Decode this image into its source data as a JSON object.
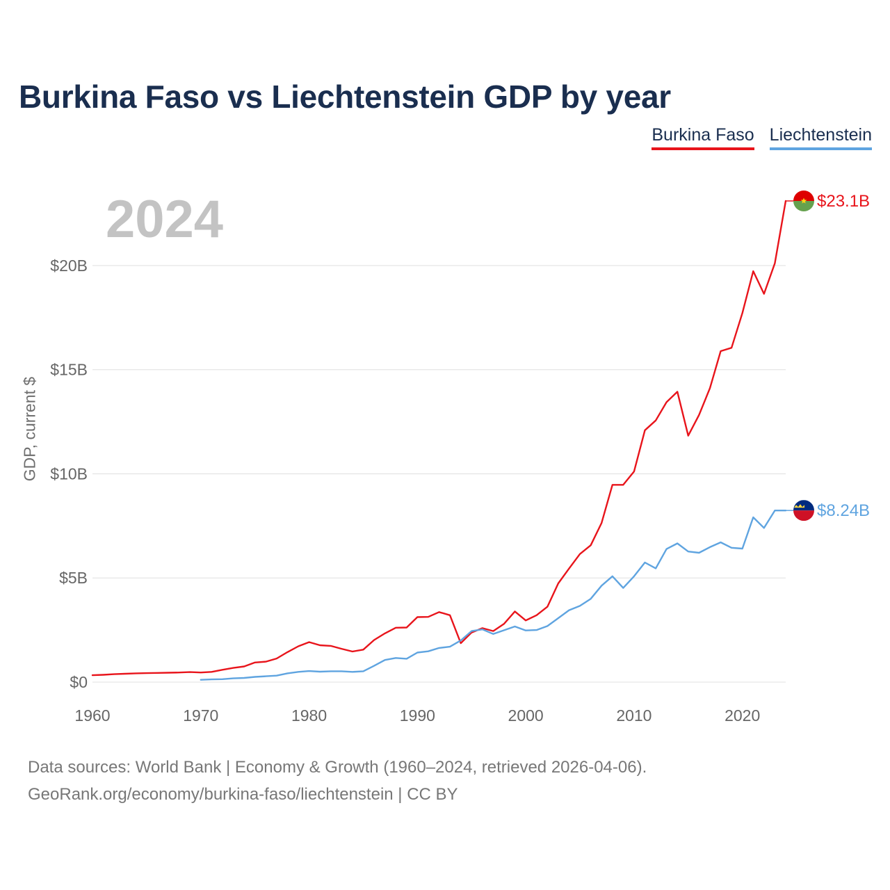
{
  "page": {
    "title": "Burkina Faso vs Liechtenstein GDP by year",
    "year_label": "2024",
    "source_line1": "Data sources: World Bank | Economy & Growth (1960–2024, retrieved 2026-04-06).",
    "source_line2": "GeoRank.org/economy/burkina-faso/liechtenstein | CC BY"
  },
  "legend": [
    {
      "name": "Burkina Faso",
      "color": "#e8141b"
    },
    {
      "name": "Liechtenstein",
      "color": "#5fa4e0"
    }
  ],
  "chart_data": {
    "type": "line",
    "title": "Burkina Faso vs Liechtenstein GDP by year",
    "xlabel": "",
    "ylabel": "GDP, current $",
    "xlim": [
      1960,
      2024
    ],
    "ylim": [
      0,
      23.1
    ],
    "x_ticks": [
      1960,
      1970,
      1980,
      1990,
      2000,
      2010,
      2020
    ],
    "x_tick_labels": [
      "1960",
      "1970",
      "1980",
      "1990",
      "2000",
      "2010",
      "2020"
    ],
    "y_ticks": [
      0,
      5,
      10,
      15,
      20
    ],
    "y_tick_labels": [
      "$0",
      "$5B",
      "$10B",
      "$15B",
      "$20B"
    ],
    "units": "billions of current US$",
    "grid": true,
    "legend_position": "top-right",
    "series": [
      {
        "name": "Burkina Faso",
        "color": "#e8141b",
        "end_label": "$23.1B",
        "flag_colors": [
          "#de0000",
          "#65a14e",
          "#fcd116"
        ],
        "x": [
          1960,
          1961,
          1962,
          1963,
          1964,
          1965,
          1966,
          1967,
          1968,
          1969,
          1970,
          1971,
          1972,
          1973,
          1974,
          1975,
          1976,
          1977,
          1978,
          1979,
          1980,
          1981,
          1982,
          1983,
          1984,
          1985,
          1986,
          1987,
          1988,
          1989,
          1990,
          1991,
          1992,
          1993,
          1994,
          1995,
          1996,
          1997,
          1998,
          1999,
          2000,
          2001,
          2002,
          2003,
          2004,
          2005,
          2006,
          2007,
          2008,
          2009,
          2010,
          2011,
          2012,
          2013,
          2014,
          2015,
          2016,
          2017,
          2018,
          2019,
          2020,
          2021,
          2022,
          2023,
          2024
        ],
        "values": [
          0.33,
          0.35,
          0.38,
          0.4,
          0.42,
          0.43,
          0.44,
          0.45,
          0.46,
          0.48,
          0.46,
          0.49,
          0.59,
          0.68,
          0.75,
          0.94,
          0.98,
          1.13,
          1.44,
          1.72,
          1.92,
          1.77,
          1.74,
          1.6,
          1.47,
          1.56,
          2.02,
          2.34,
          2.61,
          2.62,
          3.12,
          3.13,
          3.36,
          3.21,
          1.87,
          2.38,
          2.59,
          2.45,
          2.8,
          3.39,
          2.96,
          3.21,
          3.62,
          4.74,
          5.45,
          6.15,
          6.57,
          7.64,
          9.47,
          9.47,
          10.11,
          12.09,
          12.56,
          13.44,
          13.94,
          11.83,
          12.83,
          14.11,
          15.89,
          16.05,
          17.72,
          19.73,
          18.64,
          20.11,
          23.1
        ]
      },
      {
        "name": "Liechtenstein",
        "color": "#5fa4e0",
        "end_label": "$8.24B",
        "flag_colors": [
          "#002b7f",
          "#ce1126",
          "#ffd83d"
        ],
        "x": [
          1970,
          1971,
          1972,
          1973,
          1974,
          1975,
          1976,
          1977,
          1978,
          1979,
          1980,
          1981,
          1982,
          1983,
          1984,
          1985,
          1986,
          1987,
          1988,
          1989,
          1990,
          1991,
          1992,
          1993,
          1994,
          1995,
          1996,
          1997,
          1998,
          1999,
          2000,
          2001,
          2002,
          2003,
          2004,
          2005,
          2006,
          2007,
          2008,
          2009,
          2010,
          2011,
          2012,
          2013,
          2014,
          2015,
          2016,
          2017,
          2018,
          2019,
          2020,
          2021,
          2022,
          2023,
          2024
        ],
        "values": [
          0.11,
          0.13,
          0.14,
          0.18,
          0.2,
          0.25,
          0.28,
          0.31,
          0.42,
          0.49,
          0.53,
          0.5,
          0.52,
          0.52,
          0.49,
          0.52,
          0.78,
          1.06,
          1.16,
          1.12,
          1.42,
          1.48,
          1.64,
          1.7,
          2.0,
          2.45,
          2.53,
          2.31,
          2.49,
          2.67,
          2.48,
          2.5,
          2.69,
          3.07,
          3.45,
          3.66,
          4.0,
          4.63,
          5.08,
          4.52,
          5.08,
          5.74,
          5.46,
          6.39,
          6.66,
          6.27,
          6.21,
          6.48,
          6.71,
          6.45,
          6.41,
          7.91,
          7.4,
          8.24,
          8.24
        ]
      }
    ]
  }
}
